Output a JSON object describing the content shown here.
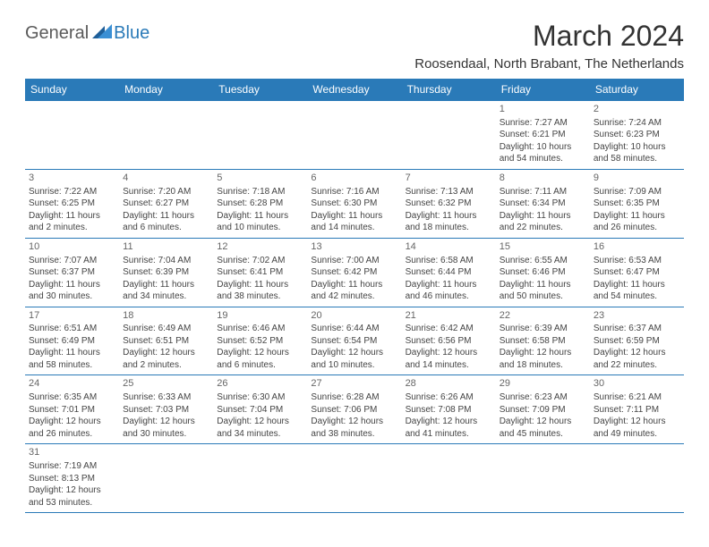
{
  "logo": {
    "general": "General",
    "blue": "Blue"
  },
  "title": "March 2024",
  "location": "Roosendaal, North Brabant, The Netherlands",
  "colors": {
    "header_bg": "#2a7ab8",
    "header_text": "#ffffff",
    "border": "#2a7ab8",
    "body_text": "#444444",
    "title_text": "#333333",
    "logo_gray": "#5a5a5a",
    "logo_blue": "#2a7ab8",
    "background": "#ffffff"
  },
  "typography": {
    "title_fontsize": 32,
    "location_fontsize": 15,
    "weekday_fontsize": 12,
    "cell_fontsize": 10,
    "logo_fontsize": 20
  },
  "weekdays": [
    "Sunday",
    "Monday",
    "Tuesday",
    "Wednesday",
    "Thursday",
    "Friday",
    "Saturday"
  ],
  "weeks": [
    [
      null,
      null,
      null,
      null,
      null,
      {
        "day": "1",
        "sunrise": "Sunrise: 7:27 AM",
        "sunset": "Sunset: 6:21 PM",
        "daylight": "Daylight: 10 hours and 54 minutes."
      },
      {
        "day": "2",
        "sunrise": "Sunrise: 7:24 AM",
        "sunset": "Sunset: 6:23 PM",
        "daylight": "Daylight: 10 hours and 58 minutes."
      }
    ],
    [
      {
        "day": "3",
        "sunrise": "Sunrise: 7:22 AM",
        "sunset": "Sunset: 6:25 PM",
        "daylight": "Daylight: 11 hours and 2 minutes."
      },
      {
        "day": "4",
        "sunrise": "Sunrise: 7:20 AM",
        "sunset": "Sunset: 6:27 PM",
        "daylight": "Daylight: 11 hours and 6 minutes."
      },
      {
        "day": "5",
        "sunrise": "Sunrise: 7:18 AM",
        "sunset": "Sunset: 6:28 PM",
        "daylight": "Daylight: 11 hours and 10 minutes."
      },
      {
        "day": "6",
        "sunrise": "Sunrise: 7:16 AM",
        "sunset": "Sunset: 6:30 PM",
        "daylight": "Daylight: 11 hours and 14 minutes."
      },
      {
        "day": "7",
        "sunrise": "Sunrise: 7:13 AM",
        "sunset": "Sunset: 6:32 PM",
        "daylight": "Daylight: 11 hours and 18 minutes."
      },
      {
        "day": "8",
        "sunrise": "Sunrise: 7:11 AM",
        "sunset": "Sunset: 6:34 PM",
        "daylight": "Daylight: 11 hours and 22 minutes."
      },
      {
        "day": "9",
        "sunrise": "Sunrise: 7:09 AM",
        "sunset": "Sunset: 6:35 PM",
        "daylight": "Daylight: 11 hours and 26 minutes."
      }
    ],
    [
      {
        "day": "10",
        "sunrise": "Sunrise: 7:07 AM",
        "sunset": "Sunset: 6:37 PM",
        "daylight": "Daylight: 11 hours and 30 minutes."
      },
      {
        "day": "11",
        "sunrise": "Sunrise: 7:04 AM",
        "sunset": "Sunset: 6:39 PM",
        "daylight": "Daylight: 11 hours and 34 minutes."
      },
      {
        "day": "12",
        "sunrise": "Sunrise: 7:02 AM",
        "sunset": "Sunset: 6:41 PM",
        "daylight": "Daylight: 11 hours and 38 minutes."
      },
      {
        "day": "13",
        "sunrise": "Sunrise: 7:00 AM",
        "sunset": "Sunset: 6:42 PM",
        "daylight": "Daylight: 11 hours and 42 minutes."
      },
      {
        "day": "14",
        "sunrise": "Sunrise: 6:58 AM",
        "sunset": "Sunset: 6:44 PM",
        "daylight": "Daylight: 11 hours and 46 minutes."
      },
      {
        "day": "15",
        "sunrise": "Sunrise: 6:55 AM",
        "sunset": "Sunset: 6:46 PM",
        "daylight": "Daylight: 11 hours and 50 minutes."
      },
      {
        "day": "16",
        "sunrise": "Sunrise: 6:53 AM",
        "sunset": "Sunset: 6:47 PM",
        "daylight": "Daylight: 11 hours and 54 minutes."
      }
    ],
    [
      {
        "day": "17",
        "sunrise": "Sunrise: 6:51 AM",
        "sunset": "Sunset: 6:49 PM",
        "daylight": "Daylight: 11 hours and 58 minutes."
      },
      {
        "day": "18",
        "sunrise": "Sunrise: 6:49 AM",
        "sunset": "Sunset: 6:51 PM",
        "daylight": "Daylight: 12 hours and 2 minutes."
      },
      {
        "day": "19",
        "sunrise": "Sunrise: 6:46 AM",
        "sunset": "Sunset: 6:52 PM",
        "daylight": "Daylight: 12 hours and 6 minutes."
      },
      {
        "day": "20",
        "sunrise": "Sunrise: 6:44 AM",
        "sunset": "Sunset: 6:54 PM",
        "daylight": "Daylight: 12 hours and 10 minutes."
      },
      {
        "day": "21",
        "sunrise": "Sunrise: 6:42 AM",
        "sunset": "Sunset: 6:56 PM",
        "daylight": "Daylight: 12 hours and 14 minutes."
      },
      {
        "day": "22",
        "sunrise": "Sunrise: 6:39 AM",
        "sunset": "Sunset: 6:58 PM",
        "daylight": "Daylight: 12 hours and 18 minutes."
      },
      {
        "day": "23",
        "sunrise": "Sunrise: 6:37 AM",
        "sunset": "Sunset: 6:59 PM",
        "daylight": "Daylight: 12 hours and 22 minutes."
      }
    ],
    [
      {
        "day": "24",
        "sunrise": "Sunrise: 6:35 AM",
        "sunset": "Sunset: 7:01 PM",
        "daylight": "Daylight: 12 hours and 26 minutes."
      },
      {
        "day": "25",
        "sunrise": "Sunrise: 6:33 AM",
        "sunset": "Sunset: 7:03 PM",
        "daylight": "Daylight: 12 hours and 30 minutes."
      },
      {
        "day": "26",
        "sunrise": "Sunrise: 6:30 AM",
        "sunset": "Sunset: 7:04 PM",
        "daylight": "Daylight: 12 hours and 34 minutes."
      },
      {
        "day": "27",
        "sunrise": "Sunrise: 6:28 AM",
        "sunset": "Sunset: 7:06 PM",
        "daylight": "Daylight: 12 hours and 38 minutes."
      },
      {
        "day": "28",
        "sunrise": "Sunrise: 6:26 AM",
        "sunset": "Sunset: 7:08 PM",
        "daylight": "Daylight: 12 hours and 41 minutes."
      },
      {
        "day": "29",
        "sunrise": "Sunrise: 6:23 AM",
        "sunset": "Sunset: 7:09 PM",
        "daylight": "Daylight: 12 hours and 45 minutes."
      },
      {
        "day": "30",
        "sunrise": "Sunrise: 6:21 AM",
        "sunset": "Sunset: 7:11 PM",
        "daylight": "Daylight: 12 hours and 49 minutes."
      }
    ],
    [
      {
        "day": "31",
        "sunrise": "Sunrise: 7:19 AM",
        "sunset": "Sunset: 8:13 PM",
        "daylight": "Daylight: 12 hours and 53 minutes."
      },
      null,
      null,
      null,
      null,
      null,
      null
    ]
  ]
}
